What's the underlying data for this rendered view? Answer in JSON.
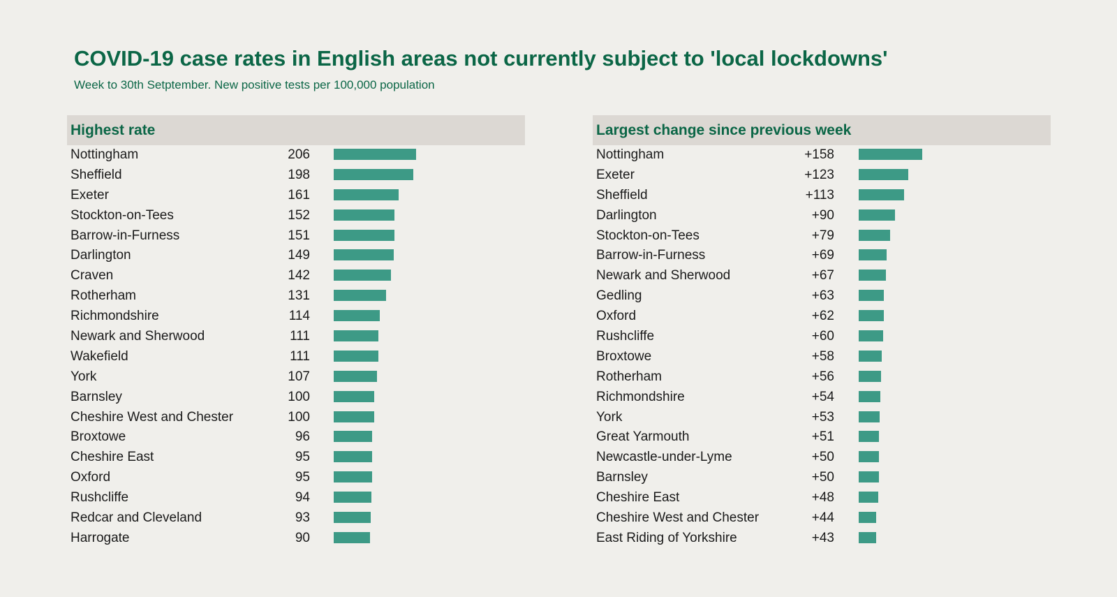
{
  "title": "COVID-19 case rates in English areas not currently subject to 'local lockdowns'",
  "subtitle": "Week to 30th Setptember. New positive tests per 100,000 population",
  "colors": {
    "background": "#f0efeb",
    "header": "#dcd8d3",
    "text_accent": "#0b6646",
    "bar": "#3d9a86"
  },
  "chart_data": [
    {
      "type": "bar",
      "orientation": "horizontal",
      "title": "Highest rate",
      "categories": [
        "Nottingham",
        "Sheffield",
        "Exeter",
        "Stockton-on-Tees",
        "Barrow-in-Furness",
        "Darlington",
        "Craven",
        "Rotherham",
        "Richmondshire",
        "Newark and Sherwood",
        "Wakefield",
        "York",
        "Barnsley",
        "Cheshire West and Chester",
        "Broxtowe",
        "Cheshire East",
        "Oxford",
        "Rushcliffe",
        "Redcar and Cleveland",
        "Harrogate"
      ],
      "values": [
        206,
        198,
        161,
        152,
        151,
        149,
        142,
        131,
        114,
        111,
        111,
        107,
        100,
        100,
        96,
        95,
        95,
        94,
        93,
        90
      ],
      "labels": [
        "206",
        "198",
        "161",
        "152",
        "151",
        "149",
        "142",
        "131",
        "114",
        "111",
        "111",
        "107",
        "100",
        "100",
        "96",
        "95",
        "95",
        "94",
        "93",
        "90"
      ]
    },
    {
      "type": "bar",
      "orientation": "horizontal",
      "title": "Largest change since previous week",
      "categories": [
        "Nottingham",
        "Exeter",
        "Sheffield",
        "Darlington",
        "Stockton-on-Tees",
        "Barrow-in-Furness",
        "Newark and Sherwood",
        "Gedling",
        "Oxford",
        "Rushcliffe",
        "Broxtowe",
        "Rotherham",
        "Richmondshire",
        "York",
        "Great Yarmouth",
        "Newcastle-under-Lyme",
        "Barnsley",
        "Cheshire East",
        "Cheshire West and Chester",
        "East Riding of Yorkshire"
      ],
      "values": [
        158,
        123,
        113,
        90,
        79,
        69,
        67,
        63,
        62,
        60,
        58,
        56,
        54,
        53,
        51,
        50,
        50,
        48,
        44,
        43
      ],
      "labels": [
        "+158",
        "+123",
        "+113",
        "+90",
        "+79",
        "+69",
        "+67",
        "+63",
        "+62",
        "+60",
        "+58",
        "+56",
        "+54",
        "+53",
        "+51",
        "+50",
        "+50",
        "+48",
        "+44",
        "+43"
      ]
    }
  ]
}
